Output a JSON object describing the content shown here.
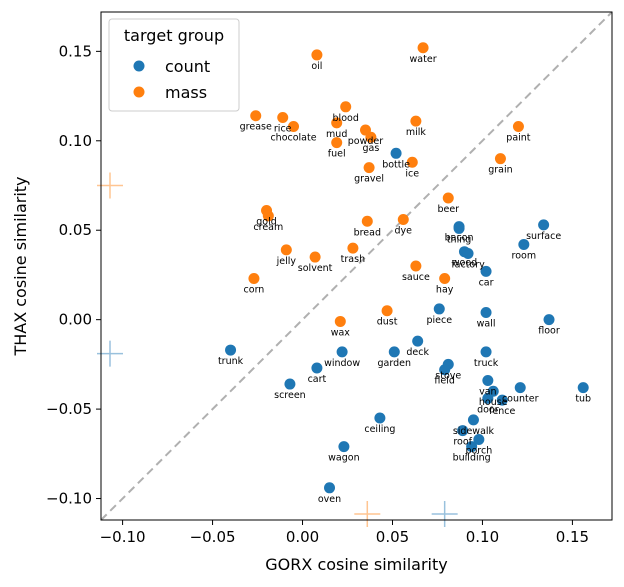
{
  "chart_data": {
    "type": "scatter",
    "xlabel": "GORX cosine similarity",
    "ylabel": "THAX cosine similarity",
    "xlim": [
      -0.112,
      0.172
    ],
    "ylim": [
      -0.112,
      0.172
    ],
    "xticks": [
      -0.1,
      -0.05,
      0.0,
      0.05,
      0.1,
      0.15
    ],
    "xtick_labels": [
      "−0.10",
      "−0.05",
      "0.00",
      "0.05",
      "0.10",
      "0.15"
    ],
    "yticks": [
      -0.1,
      -0.05,
      0.0,
      0.05,
      0.1,
      0.15
    ],
    "ytick_labels": [
      "−0.10",
      "−0.05",
      "0.00",
      "0.05",
      "0.10",
      "0.15"
    ],
    "diagonal": true,
    "legend": {
      "title": "target group",
      "position": "top-left",
      "entries": [
        {
          "label": "count",
          "color": "#1f77b4"
        },
        {
          "label": "mass",
          "color": "#ff7f0e"
        }
      ]
    },
    "series": [
      {
        "name": "count",
        "color": "#1f77b4",
        "points": [
          {
            "label": "bottle",
            "x": 0.052,
            "y": 0.093
          },
          {
            "label": "bacon",
            "x": 0.087,
            "y": 0.052
          },
          {
            "label": "thing",
            "x": 0.087,
            "y": 0.051
          },
          {
            "label": "wood",
            "x": 0.09,
            "y": 0.038
          },
          {
            "label": "factory",
            "x": 0.092,
            "y": 0.037
          },
          {
            "label": "surface",
            "x": 0.134,
            "y": 0.053
          },
          {
            "label": "room",
            "x": 0.123,
            "y": 0.042
          },
          {
            "label": "car",
            "x": 0.102,
            "y": 0.027
          },
          {
            "label": "piece",
            "x": 0.076,
            "y": 0.006
          },
          {
            "label": "wall",
            "x": 0.102,
            "y": 0.004
          },
          {
            "label": "floor",
            "x": 0.137,
            "y": 0.0
          },
          {
            "label": "deck",
            "x": 0.064,
            "y": -0.012
          },
          {
            "label": "trunk",
            "x": -0.04,
            "y": -0.017
          },
          {
            "label": "window",
            "x": 0.022,
            "y": -0.018
          },
          {
            "label": "garden",
            "x": 0.051,
            "y": -0.018
          },
          {
            "label": "truck",
            "x": 0.102,
            "y": -0.018
          },
          {
            "label": "cart",
            "x": 0.008,
            "y": -0.027
          },
          {
            "label": "stove",
            "x": 0.081,
            "y": -0.025
          },
          {
            "label": "field",
            "x": 0.079,
            "y": -0.028
          },
          {
            "label": "van",
            "x": 0.103,
            "y": -0.034
          },
          {
            "label": "screen",
            "x": -0.007,
            "y": -0.036
          },
          {
            "label": "house",
            "x": 0.106,
            "y": -0.04
          },
          {
            "label": "counter",
            "x": 0.121,
            "y": -0.038
          },
          {
            "label": "tub",
            "x": 0.156,
            "y": -0.038
          },
          {
            "label": "door",
            "x": 0.103,
            "y": -0.044
          },
          {
            "label": "fence",
            "x": 0.111,
            "y": -0.045
          },
          {
            "label": "ceiling",
            "x": 0.043,
            "y": -0.055
          },
          {
            "label": "sidewalk",
            "x": 0.095,
            "y": -0.056
          },
          {
            "label": "roof",
            "x": 0.089,
            "y": -0.062
          },
          {
            "label": "porch",
            "x": 0.098,
            "y": -0.067
          },
          {
            "label": "wagon",
            "x": 0.023,
            "y": -0.071
          },
          {
            "label": "building",
            "x": 0.094,
            "y": -0.071
          },
          {
            "label": "oven",
            "x": 0.015,
            "y": -0.094
          }
        ]
      },
      {
        "name": "mass",
        "color": "#ff7f0e",
        "points": [
          {
            "label": "oil",
            "x": 0.008,
            "y": 0.148
          },
          {
            "label": "water",
            "x": 0.067,
            "y": 0.152
          },
          {
            "label": "blood",
            "x": 0.024,
            "y": 0.119
          },
          {
            "label": "grease",
            "x": -0.026,
            "y": 0.114
          },
          {
            "label": "rice",
            "x": -0.011,
            "y": 0.113
          },
          {
            "label": "chocolate",
            "x": -0.005,
            "y": 0.108
          },
          {
            "label": "mud",
            "x": 0.019,
            "y": 0.11
          },
          {
            "label": "milk",
            "x": 0.063,
            "y": 0.111
          },
          {
            "label": "paint",
            "x": 0.12,
            "y": 0.108
          },
          {
            "label": "powder",
            "x": 0.035,
            "y": 0.106
          },
          {
            "label": "gas",
            "x": 0.038,
            "y": 0.102
          },
          {
            "label": "fuel",
            "x": 0.019,
            "y": 0.099
          },
          {
            "label": "ice",
            "x": 0.061,
            "y": 0.088
          },
          {
            "label": "grain",
            "x": 0.11,
            "y": 0.09
          },
          {
            "label": "gravel",
            "x": 0.037,
            "y": 0.085
          },
          {
            "label": "beer",
            "x": 0.081,
            "y": 0.068
          },
          {
            "label": "gold",
            "x": -0.02,
            "y": 0.061
          },
          {
            "label": "cream",
            "x": -0.019,
            "y": 0.058
          },
          {
            "label": "bread",
            "x": 0.036,
            "y": 0.055
          },
          {
            "label": "dye",
            "x": 0.056,
            "y": 0.056
          },
          {
            "label": "jelly",
            "x": -0.009,
            "y": 0.039
          },
          {
            "label": "solvent",
            "x": 0.007,
            "y": 0.035
          },
          {
            "label": "trash",
            "x": 0.028,
            "y": 0.04
          },
          {
            "label": "corn",
            "x": -0.027,
            "y": 0.023
          },
          {
            "label": "sauce",
            "x": 0.063,
            "y": 0.03
          },
          {
            "label": "hay",
            "x": 0.079,
            "y": 0.023
          },
          {
            "label": "dust",
            "x": 0.047,
            "y": 0.005
          },
          {
            "label": "wax",
            "x": 0.021,
            "y": -0.001
          }
        ]
      }
    ],
    "crosshairs": [
      {
        "series": "mass",
        "axis": "y",
        "value": 0.075
      },
      {
        "series": "count",
        "axis": "y",
        "value": -0.019
      },
      {
        "series": "mass",
        "axis": "x",
        "value": 0.036
      },
      {
        "series": "count",
        "axis": "x",
        "value": 0.079
      }
    ]
  }
}
